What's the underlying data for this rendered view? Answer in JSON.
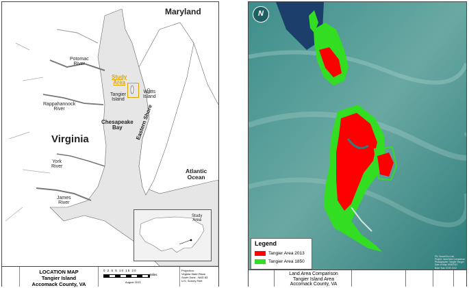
{
  "location_map": {
    "labels": {
      "maryland": "Maryland",
      "potomac": "Potomac\nRiver",
      "study_area": "Study\nArea",
      "tangier": "Tangier\nIsland",
      "watts": "Watts\nIsland",
      "rappahannock": "Rappahannock\nRiver",
      "chesapeake": "Chesapeake\nBay",
      "eastern_shore": "Eastern Shore",
      "virginia": "Virginia",
      "york": "York\nRiver",
      "james": "James\nRiver",
      "atlantic": "Atlantic\nOcean"
    },
    "inset_label": "Study\nArea",
    "title_lines": [
      "LOCATION MAP",
      "Tangier Island",
      "Accomack County, VA"
    ],
    "scale_numbers": "0  2.5  5      10      15      20",
    "scale_unit": "Miles",
    "date": "August 2013",
    "projection": [
      "Projection:",
      "Virginia State Plane",
      "South Zone - NAD 83",
      "U.S. Survey Feet"
    ],
    "colors": {
      "study": "#e0a400",
      "land": "#ffffff",
      "water": "#e6e6e6"
    }
  },
  "satellite_map": {
    "north_arrow": "N",
    "legend": {
      "title": "Legend",
      "items": [
        {
          "label": "Tangier Area 2013",
          "color": "#ff0000"
        },
        {
          "label": "Tangier Area 1850",
          "color": "#33dd22"
        }
      ]
    },
    "credits": [
      "PN. Sound Env Lab",
      "Project: Land Area Comparison",
      "Photographer: Tangier Ranger",
      "Date of Map: 8/05/2013",
      "Base Year: EOEI 2012"
    ],
    "title_lines": [
      "Land Area Comparison",
      "Tangier Island Area",
      "Accomack County, VA"
    ]
  }
}
